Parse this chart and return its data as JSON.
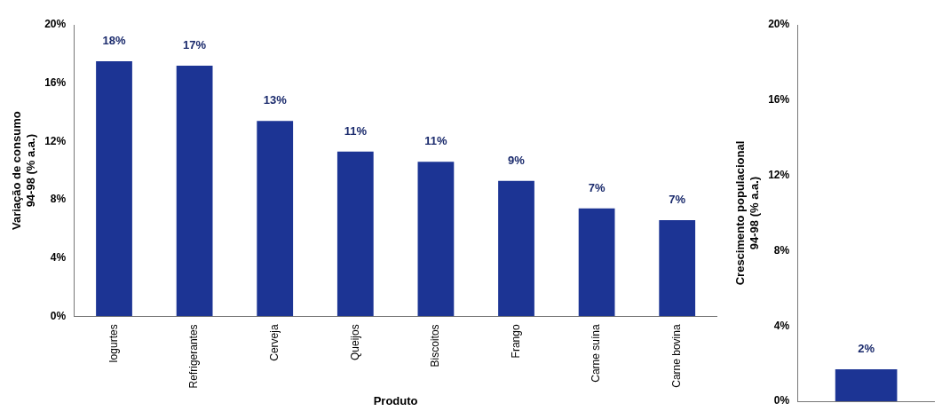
{
  "chart_data": [
    {
      "type": "bar",
      "xlabel": "Produto",
      "ylabel": "Variação de consumo\n94-98 (% a.a.)",
      "categories": [
        "Iogurtes",
        "Refrigerantes",
        "Cerveja",
        "Queijos",
        "Biscoitos",
        "Frango",
        "Carne suína",
        "Carne bovina"
      ],
      "values": [
        17.5,
        17.2,
        13.4,
        11.3,
        10.6,
        9.3,
        7.4,
        6.6
      ],
      "value_labels": [
        "18%",
        "17%",
        "13%",
        "11%",
        "11%",
        "9%",
        "7%",
        "7%"
      ],
      "color": "#1c3494",
      "ylim": [
        0,
        20
      ],
      "yticks": [
        {
          "value": 0,
          "label": "0%"
        },
        {
          "value": 4,
          "label": "4%"
        },
        {
          "value": 8,
          "label": "8%"
        },
        {
          "value": 12,
          "label": "12%"
        },
        {
          "value": 16,
          "label": "16%"
        },
        {
          "value": 20,
          "label": "20%"
        }
      ],
      "grid": false,
      "legend": false
    },
    {
      "type": "bar",
      "ylabel": "Crescimento populacional\n94-98 (% a.a.)",
      "categories": [
        null
      ],
      "values": [
        1.7
      ],
      "value_labels": [
        "2%"
      ],
      "color": "#1c3494",
      "ylim": [
        0,
        20
      ],
      "yticks": [
        {
          "value": 0,
          "label": "0%"
        },
        {
          "value": 4,
          "label": "4%"
        },
        {
          "value": 8,
          "label": "8%"
        },
        {
          "value": 12,
          "label": "12%"
        },
        {
          "value": 16,
          "label": "16%"
        },
        {
          "value": 20,
          "label": "20%"
        }
      ],
      "grid": false,
      "legend": false
    }
  ]
}
